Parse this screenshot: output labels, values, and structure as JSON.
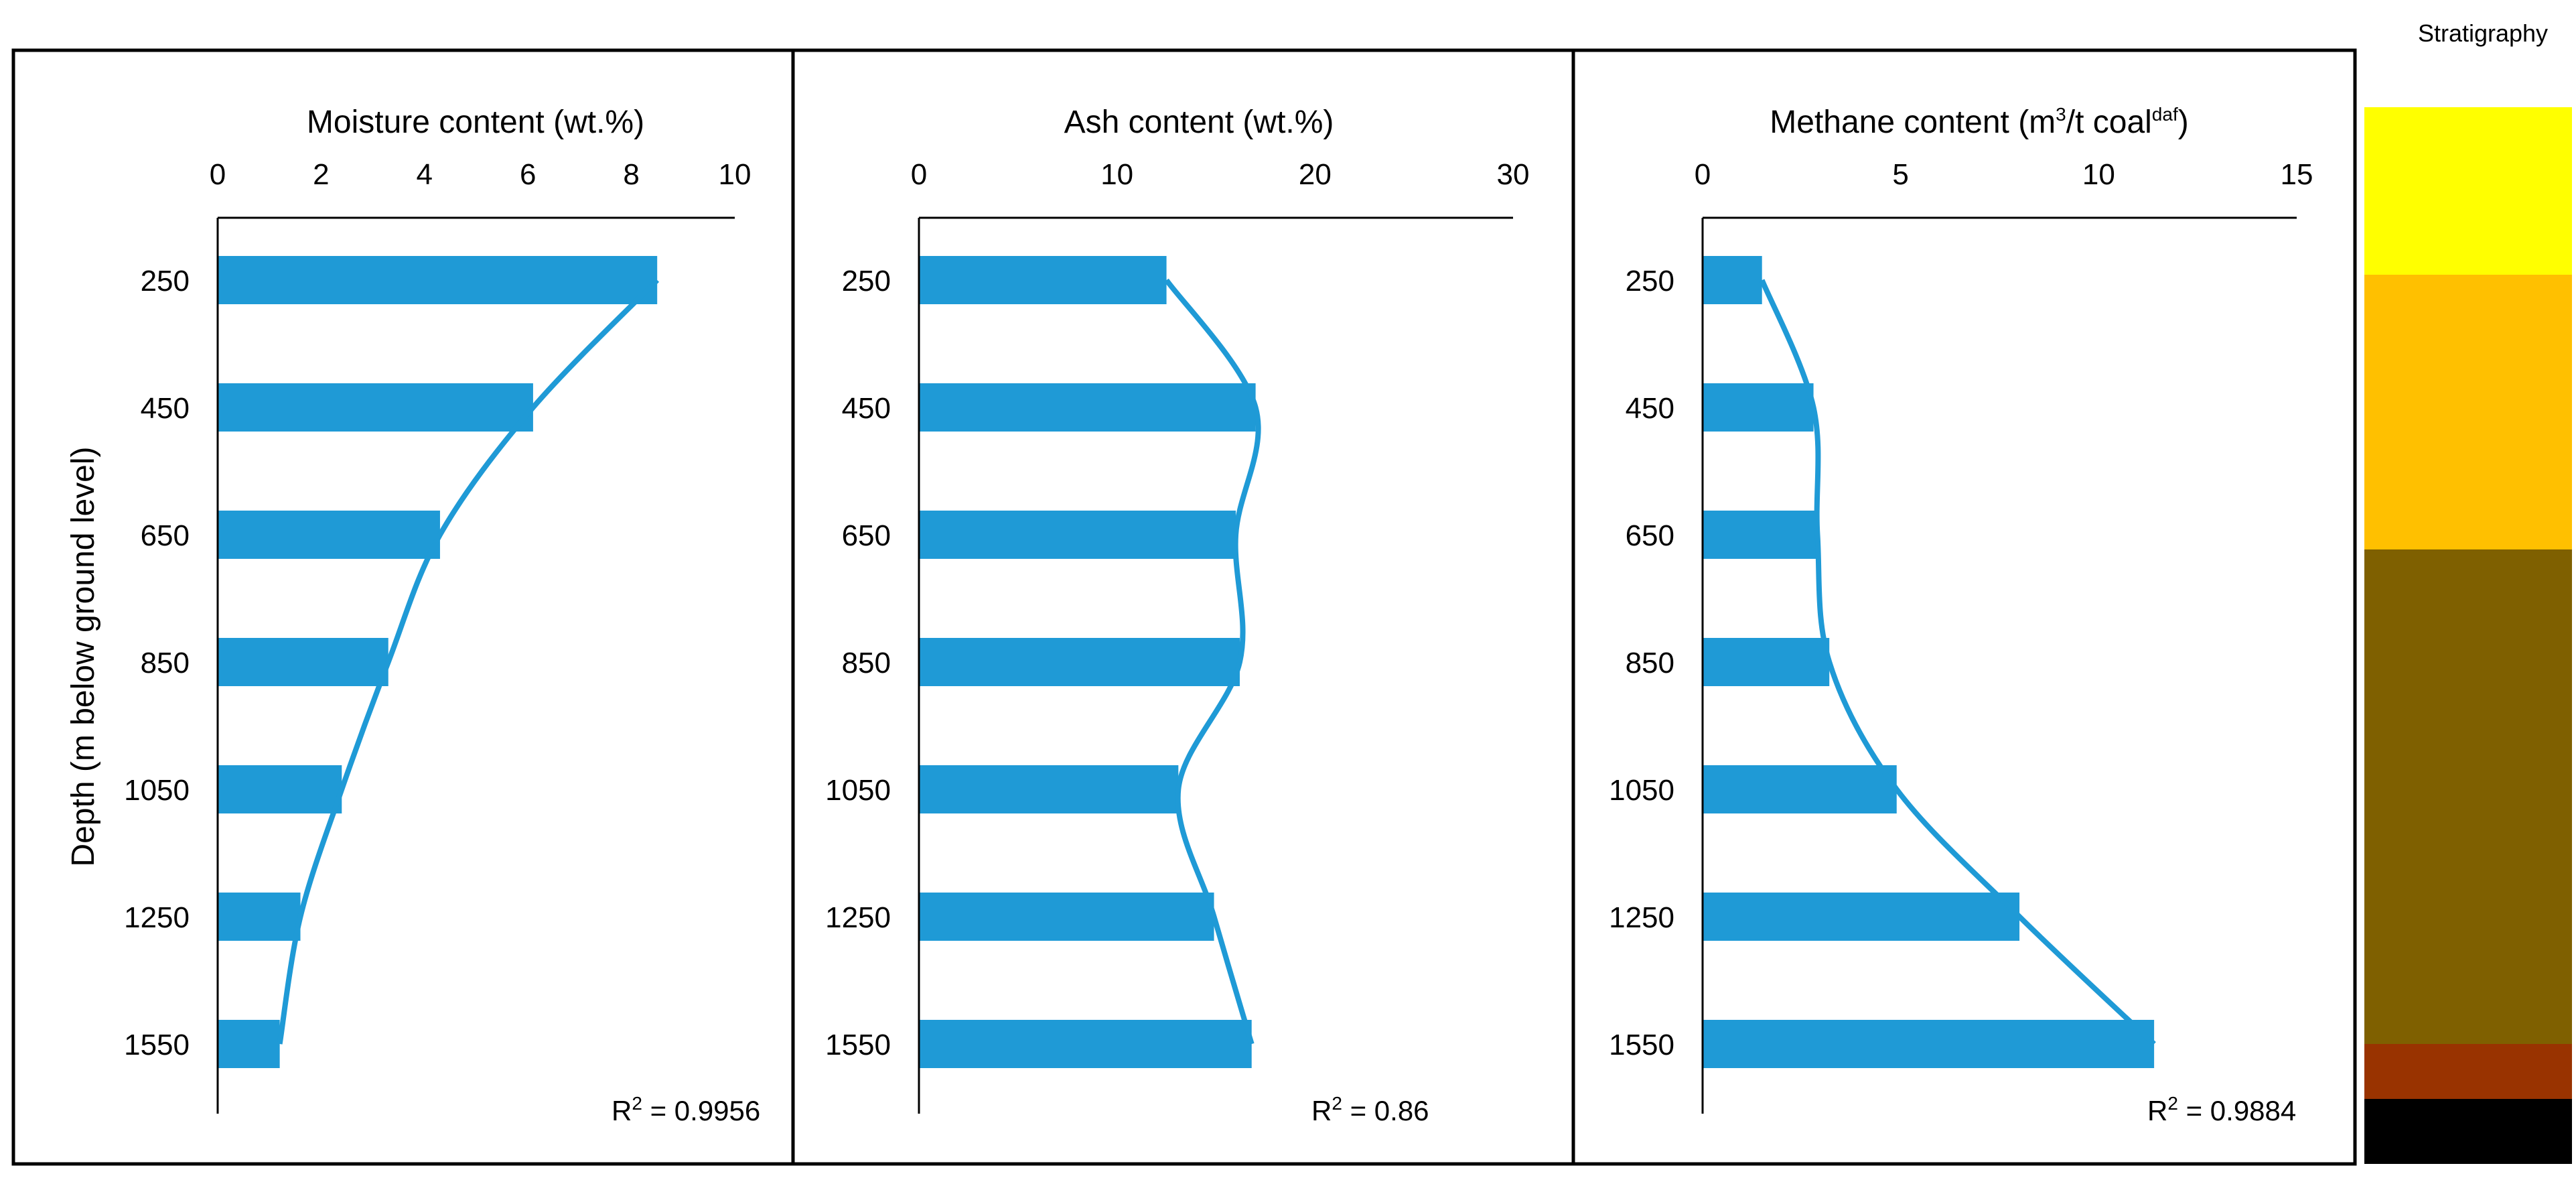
{
  "y_axis_label": "Depth (m below ground level)",
  "depths": [
    "250",
    "450",
    "650",
    "850",
    "1050",
    "1250",
    "1550"
  ],
  "stratigraphy_label": "Stratigraphy",
  "stratigraphy_colors": [
    "#FFFF00",
    "#FFC000",
    "#7F6000",
    "#993300",
    "#000000"
  ],
  "bar_color": "#1F9AD6",
  "panels": [
    {
      "title": "Moisture content (wt.%)",
      "ticks": [
        "0",
        "2",
        "4",
        "6",
        "8",
        "10"
      ],
      "r2_prefix": "R",
      "r2_sup": "2",
      "r2_value": " = 0.9956"
    },
    {
      "title": "Ash content (wt.%)",
      "ticks": [
        "0",
        "10",
        "20",
        "30"
      ],
      "r2_prefix": "R",
      "r2_sup": "2",
      "r2_value": " = 0.86"
    },
    {
      "title_part1": "Methane content (m",
      "title_sup1": "3",
      "title_part2": "/t coal",
      "title_sup2": "daf",
      "title_part3": ")",
      "ticks": [
        "0",
        "5",
        "10",
        "15"
      ],
      "r2_prefix": "R",
      "r2_sup": "2",
      "r2_value": " = 0.9884"
    }
  ],
  "chart_data": [
    {
      "type": "bar",
      "orientation": "horizontal",
      "title": "Moisture content (wt.%)",
      "ylabel": "Depth (m below ground level)",
      "categories": [
        "250",
        "450",
        "650",
        "850",
        "1050",
        "1250",
        "1550"
      ],
      "values": [
        8.5,
        6.1,
        4.3,
        3.3,
        2.4,
        1.6,
        1.2
      ],
      "xlim": [
        0,
        10
      ],
      "trendline": true,
      "r_squared": 0.9956
    },
    {
      "type": "bar",
      "orientation": "horizontal",
      "title": "Ash content (wt.%)",
      "categories": [
        "250",
        "450",
        "650",
        "850",
        "1050",
        "1250",
        "1550"
      ],
      "values": [
        12.5,
        17.0,
        16.0,
        16.2,
        13.1,
        14.9,
        16.8
      ],
      "xlim": [
        0,
        30
      ],
      "trendline": true,
      "r_squared": 0.86
    },
    {
      "type": "bar",
      "orientation": "horizontal",
      "title": "Methane content (m3/t coal daf)",
      "categories": [
        "250",
        "450",
        "650",
        "850",
        "1050",
        "1250",
        "1550"
      ],
      "values": [
        1.5,
        2.8,
        2.9,
        3.2,
        4.9,
        8.0,
        11.4
      ],
      "xlim": [
        0,
        15
      ],
      "trendline": true,
      "r_squared": 0.9884
    }
  ]
}
